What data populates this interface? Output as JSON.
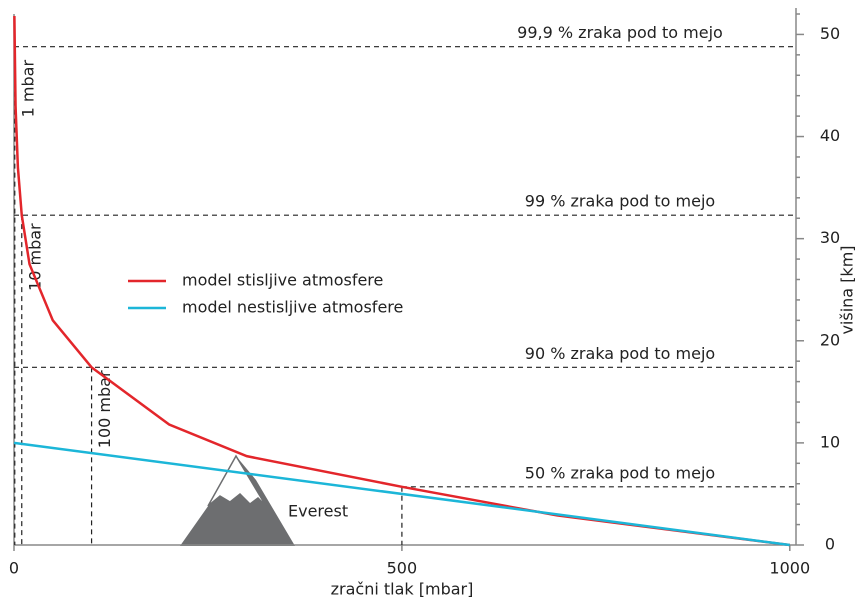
{
  "chart_data": {
    "type": "line",
    "x_label": "zračni tlak [mbar]",
    "y_label": "višina [km]",
    "xlim": [
      0,
      1008
    ],
    "ylim": [
      0,
      52
    ],
    "xticks": [
      0,
      500,
      1000
    ],
    "yticks": [
      0,
      10,
      20,
      30,
      40,
      50
    ],
    "yticks_minor": [
      2,
      4,
      6,
      8,
      12,
      14,
      16,
      18,
      22,
      24,
      26,
      28,
      32,
      34,
      36,
      38,
      42,
      44,
      46,
      48,
      52
    ],
    "series": [
      {
        "name": "model stisljive atmosfere",
        "color": "#e3262b",
        "x": [
          0.5,
          1,
          2,
          5,
          10,
          20,
          50,
          100,
          200,
          300,
          500,
          700,
          1000
        ],
        "values": [
          51.8,
          48.8,
          43,
          37,
          32.3,
          27.5,
          22,
          17.4,
          11.8,
          8.7,
          5.7,
          2.9,
          0
        ]
      },
      {
        "name": "model nestisljive atmosfere",
        "color": "#1cb6d8",
        "x": [
          0,
          1000
        ],
        "values": [
          10,
          0
        ]
      }
    ],
    "reference_lines": [
      {
        "y": 48.8,
        "x": 1,
        "label": "99,9 % zraka pod to mejo",
        "x_label": "1 mbar"
      },
      {
        "y": 32.3,
        "x": 10,
        "label": "99 % zraka pod to mejo",
        "x_label": "10 mbar"
      },
      {
        "y": 17.4,
        "x": 100,
        "label": "90 % zraka pod to mejo",
        "x_label": "100 mbar"
      },
      {
        "y": 5.7,
        "x": 500,
        "label": "50 % zraka pod to mejo"
      }
    ],
    "annotation": "Everest"
  }
}
